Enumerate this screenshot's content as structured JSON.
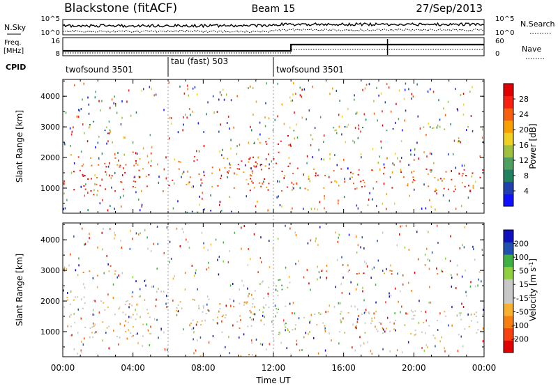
{
  "header": {
    "radar": "Blackstone (fitACF)",
    "beam": "Beam 15",
    "date": "27/Sep/2013"
  },
  "top_panels": {
    "nsky_label": "N.Sky",
    "nsearch_label": "N.Search",
    "counts_ticks_left": [
      "10^5",
      "10^0"
    ],
    "counts_ticks_right": [
      "10^5",
      "10^0"
    ],
    "freq_label_1": "Freq.",
    "freq_label_2": "[MHz]",
    "freq_ticks": [
      "16",
      "8"
    ],
    "nave_label": "Nave",
    "nave_ticks": [
      "60",
      "0"
    ],
    "cpid_label": "CPID",
    "cpid_segments": [
      {
        "label": "twofsound 3501",
        "start_hour": 0,
        "end_hour": 6
      },
      {
        "label": "tau (fast) 503",
        "start_hour": 6,
        "end_hour": 12
      },
      {
        "label": "twofsound 3501",
        "start_hour": 12,
        "end_hour": 24
      }
    ]
  },
  "chart_data": [
    {
      "type": "heatmap",
      "title": "Power",
      "xlabel": "Time UT",
      "ylabel": "Slant Range [km]",
      "xlim": [
        0,
        24
      ],
      "ylim": [
        180,
        4550
      ],
      "x_ticks": [
        "00:00",
        "04:00",
        "08:00",
        "12:00",
        "16:00",
        "20:00",
        "00:00"
      ],
      "y_ticks": [
        "1000",
        "2000",
        "3000",
        "4000"
      ],
      "colorbar": {
        "label": "Power [dB]",
        "ticks": [
          "28",
          "24",
          "20",
          "16",
          "12",
          "8",
          "4"
        ],
        "range": [
          0,
          30
        ],
        "colors": [
          "#1010ff",
          "#2040b0",
          "#208060",
          "#50a060",
          "#a0c040",
          "#f0d020",
          "#f8a000",
          "#f86010",
          "#f82010",
          "#e00000"
        ]
      },
      "echo_bands": [
        {
          "hours": [
            0,
            5
          ],
          "range_km": [
            800,
            2200
          ],
          "power_db": 24
        },
        {
          "hours": [
            1,
            3
          ],
          "range_km": [
            2800,
            3200
          ],
          "power_db": 10
        },
        {
          "hours": [
            6,
            11
          ],
          "range_km": [
            1000,
            2100
          ],
          "power_db": 22
        },
        {
          "hours": [
            10.5,
            13
          ],
          "range_km": [
            900,
            2800
          ],
          "power_db": 26
        },
        {
          "hours": [
            13,
            24
          ],
          "range_km": [
            900,
            1700
          ],
          "power_db": 24
        },
        {
          "hours": [
            13,
            24
          ],
          "range_km": [
            2900,
            3050
          ],
          "power_db": 10
        },
        {
          "hours": [
            6,
            12
          ],
          "range_km": [
            200,
            320
          ],
          "power_db": 8
        }
      ]
    },
    {
      "type": "heatmap",
      "title": "Velocity",
      "xlabel": "Time UT",
      "ylabel": "Slant Range [km]",
      "xlim": [
        0,
        24
      ],
      "ylim": [
        180,
        4550
      ],
      "x_ticks": [
        "00:00",
        "04:00",
        "08:00",
        "12:00",
        "16:00",
        "20:00",
        "00:00"
      ],
      "y_ticks": [
        "1000",
        "2000",
        "3000",
        "4000"
      ],
      "colorbar": {
        "label": "Velocity [m s",
        "label_sup": "-1",
        "label_end": "]",
        "ticks": [
          "200",
          "100",
          "50",
          "15",
          "-15",
          "-50",
          "-100",
          "-200"
        ],
        "range": [
          -250,
          250
        ],
        "colors": [
          "#e00000",
          "#f84010",
          "#f88010",
          "#f8b030",
          "#c8c8c8",
          "#c8c8c8",
          "#90d040",
          "#40b040",
          "#2050b0",
          "#1010c0"
        ]
      },
      "echo_bands": [
        {
          "hours": [
            0,
            5
          ],
          "range_km": [
            800,
            2200
          ],
          "velocity": -30
        },
        {
          "hours": [
            1,
            3
          ],
          "range_km": [
            2800,
            3200
          ],
          "velocity": -150
        },
        {
          "hours": [
            6,
            11
          ],
          "range_km": [
            1000,
            2100
          ],
          "velocity": -40
        },
        {
          "hours": [
            10.5,
            13
          ],
          "range_km": [
            900,
            2800
          ],
          "velocity": 60
        },
        {
          "hours": [
            13,
            24
          ],
          "range_km": [
            900,
            1700
          ],
          "velocity": 0
        },
        {
          "hours": [
            13,
            24
          ],
          "range_km": [
            2900,
            3050
          ],
          "velocity": -150
        },
        {
          "hours": [
            6,
            12
          ],
          "range_km": [
            200,
            320
          ],
          "velocity": -40
        }
      ]
    }
  ]
}
